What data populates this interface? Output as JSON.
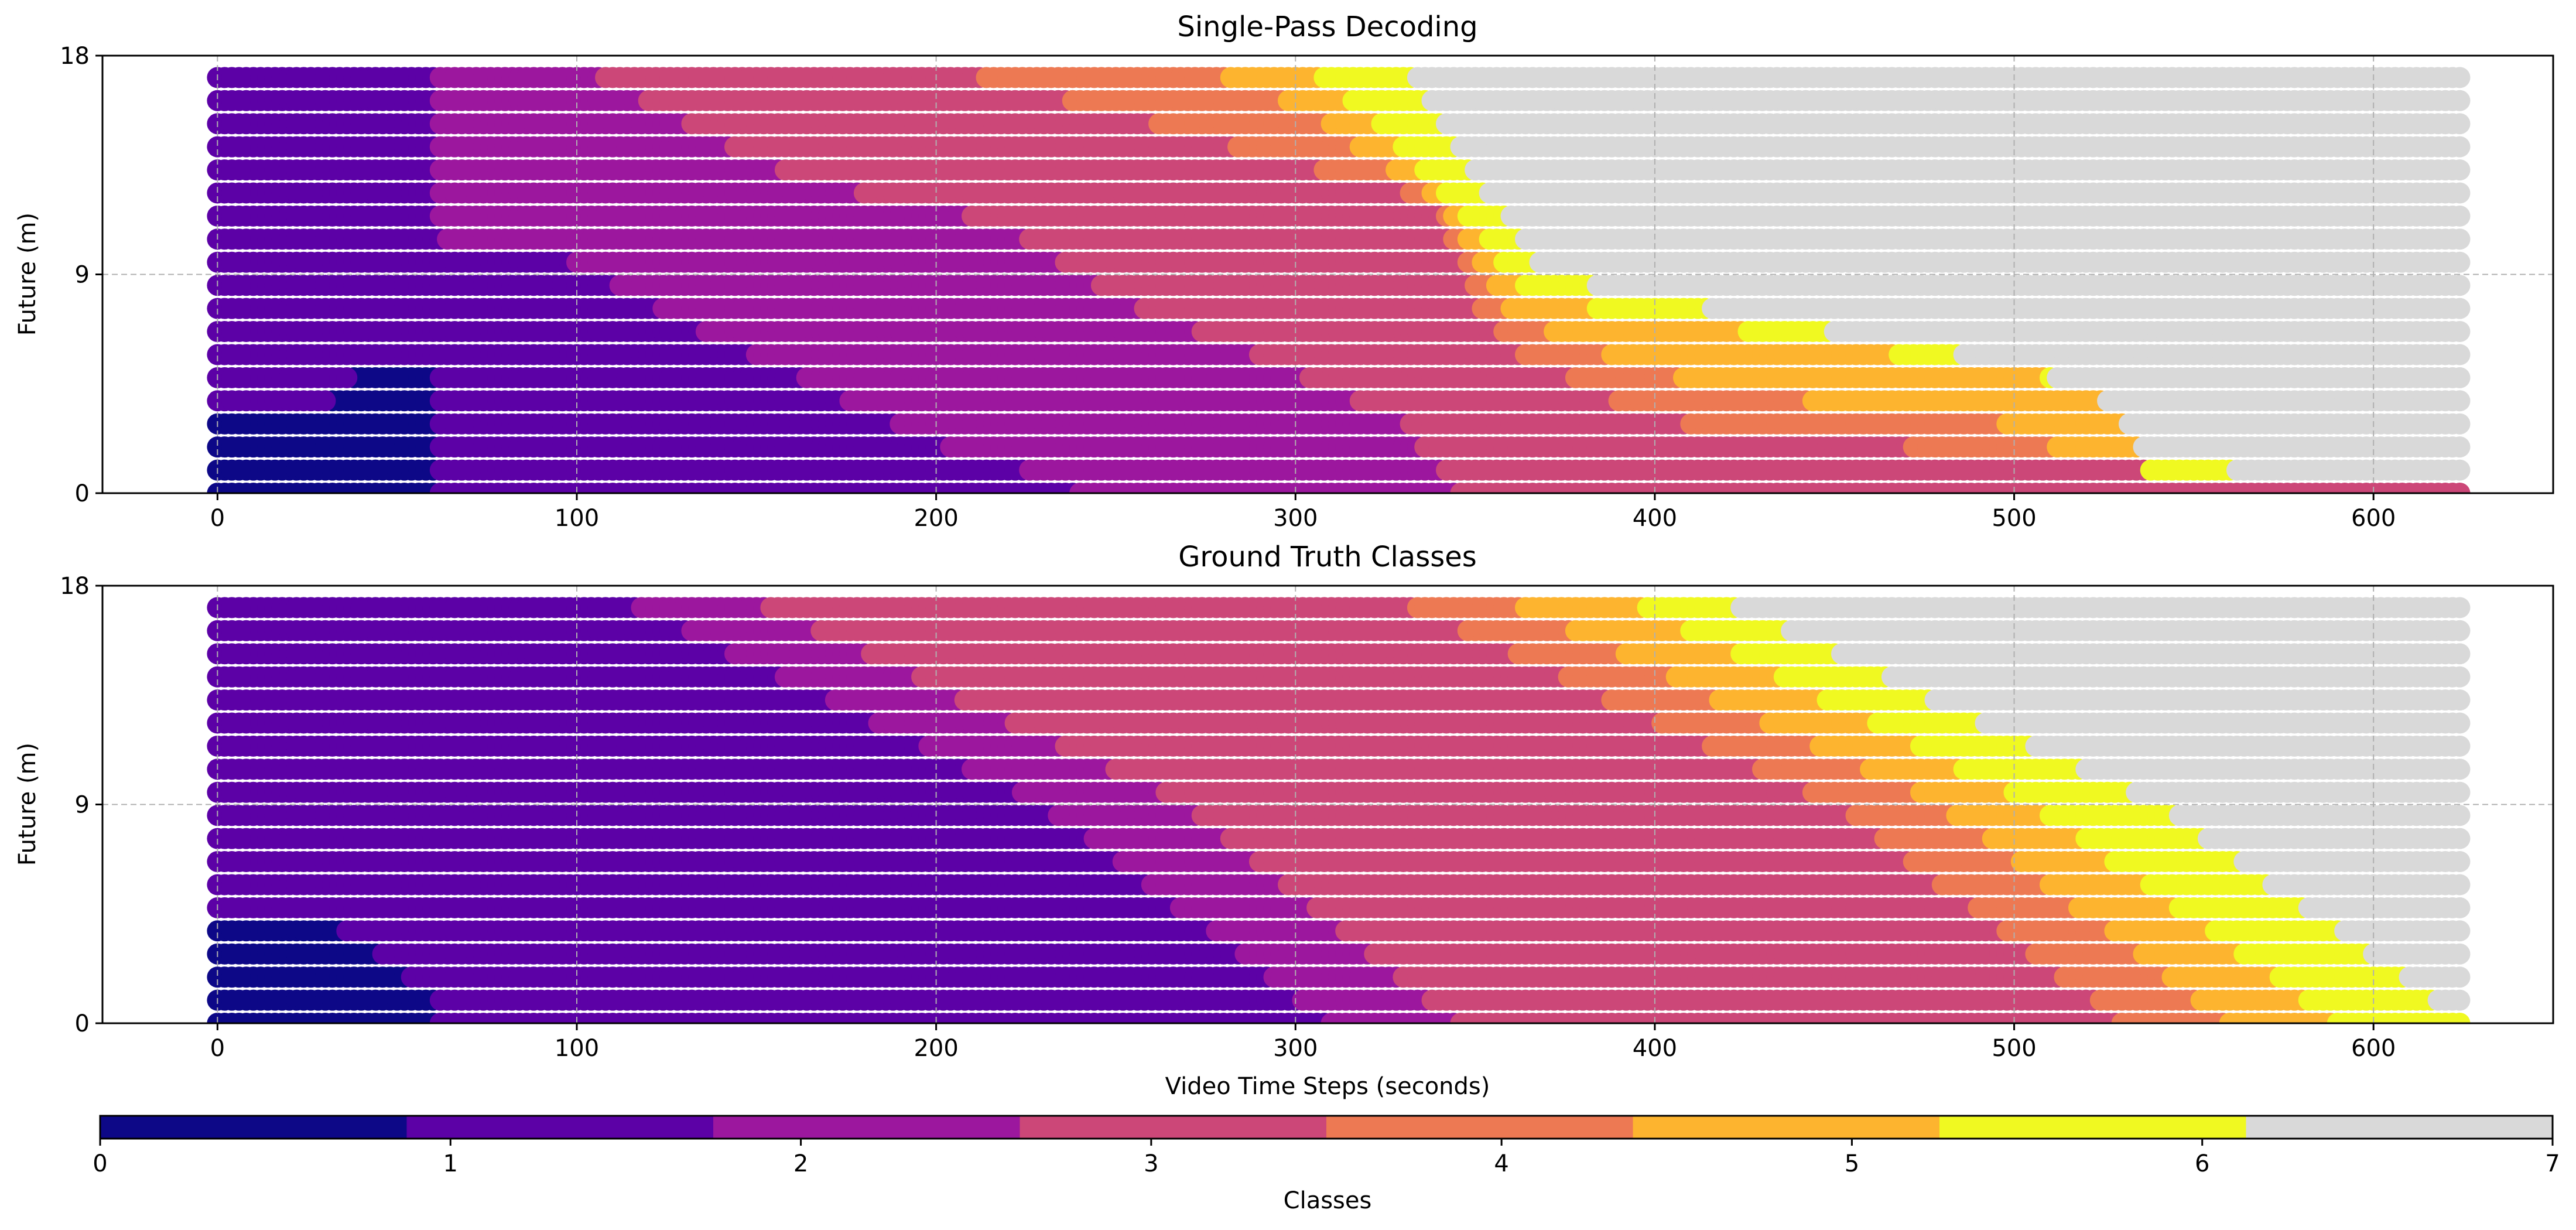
{
  "chart_data": [
    {
      "type": "scatter",
      "title": "Single-Pass Decoding",
      "xlabel": "",
      "ylabel": "Future (m)",
      "xlim": [
        -32,
        650
      ],
      "ylim": [
        0,
        18
      ],
      "xticks": [
        0,
        100,
        200,
        300,
        400,
        500,
        600
      ],
      "yticks": [
        0,
        9,
        18
      ],
      "grid": true,
      "marker": "circle",
      "point_grid": {
        "x_start": 0,
        "x_end": 624,
        "x_step": 2,
        "y_start": 0,
        "y_end": 17.5,
        "y_step": 0.95
      },
      "class_boundaries": [
        {
          "class": 0,
          "points": [
            [
              0,
              3.5
            ],
            [
              30,
              3.5
            ],
            [
              40,
              5.3
            ],
            [
              60,
              5.3
            ],
            [
              62,
              0
            ]
          ]
        },
        {
          "class": 1,
          "points": [
            [
              0,
              18
            ],
            [
              60,
              18
            ],
            [
              62,
              10.5
            ],
            [
              100,
              9.5
            ],
            [
              130,
              7
            ],
            [
              160,
              5
            ],
            [
              200,
              2
            ],
            [
              235,
              0.5
            ],
            [
              240,
              0
            ]
          ]
        },
        {
          "class": 2,
          "points": [
            [
              0,
              18
            ],
            [
              95,
              18
            ],
            [
              120,
              16
            ],
            [
              160,
              13
            ],
            [
              220,
              11
            ],
            [
              250,
              8
            ],
            [
              300,
              5
            ],
            [
              330,
              3
            ],
            [
              345,
              0
            ]
          ]
        },
        {
          "class": 3,
          "points": [
            [
              0,
              18
            ],
            [
              190,
              18
            ],
            [
              240,
              16
            ],
            [
              290,
              14
            ],
            [
              340,
              12
            ],
            [
              350,
              8
            ],
            [
              360,
              6
            ],
            [
              400,
              3
            ],
            [
              530,
              1
            ],
            [
              620,
              0.3
            ]
          ]
        },
        {
          "class": 4,
          "points": [
            [
              0,
              18
            ],
            [
              265,
              18
            ],
            [
              300,
              16
            ],
            [
              340,
              12
            ],
            [
              360,
              7.5
            ],
            [
              380,
              6
            ],
            [
              420,
              4.2
            ],
            [
              500,
              2.8
            ],
            [
              530,
              0.3
            ]
          ]
        },
        {
          "class": 5,
          "points": [
            [
              0,
              18
            ],
            [
              300,
              18
            ],
            [
              325,
              15
            ],
            [
              350,
              11
            ],
            [
              365,
              8
            ],
            [
              520,
              4.5
            ],
            [
              530,
              3.2
            ],
            [
              540,
              0.3
            ]
          ]
        },
        {
          "class": 6,
          "points": [
            [
              0,
              18
            ],
            [
              330,
              18
            ],
            [
              350,
              13
            ],
            [
              370,
              9
            ],
            [
              400,
              8
            ],
            [
              510,
              5
            ],
            [
              530,
              2
            ],
            [
              560,
              1
            ],
            [
              580,
              0.5
            ],
            [
              624,
              0.2
            ]
          ]
        }
      ]
    },
    {
      "type": "scatter",
      "title": "Ground Truth Classes",
      "xlabel": "Video Time Steps (seconds)",
      "ylabel": "Future (m)",
      "xlim": [
        -32,
        650
      ],
      "ylim": [
        0,
        18
      ],
      "xticks": [
        0,
        100,
        200,
        300,
        400,
        500,
        600
      ],
      "yticks": [
        0,
        9,
        18
      ],
      "grid": true,
      "marker": "circle",
      "point_grid": {
        "x_start": 0,
        "x_end": 624,
        "x_step": 2,
        "y_start": 0,
        "y_end": 17.5,
        "y_step": 0.95
      },
      "class_boundaries": [
        {
          "class": 0,
          "points": [
            [
              0,
              4.5
            ],
            [
              30,
              4.5
            ],
            [
              60,
              1
            ],
            [
              62,
              0
            ]
          ]
        },
        {
          "class": 1,
          "points": [
            [
              0,
              18
            ],
            [
              105,
              18
            ],
            [
              230,
              9
            ],
            [
              310,
              0
            ]
          ]
        },
        {
          "class": 2,
          "points": [
            [
              0,
              18
            ],
            [
              140,
              18
            ],
            [
              270,
              9
            ],
            [
              345,
              0
            ]
          ]
        },
        {
          "class": 3,
          "points": [
            [
              0,
              18
            ],
            [
              320,
              18
            ],
            [
              450,
              9
            ],
            [
              522,
              1
            ],
            [
              530,
              0
            ]
          ]
        },
        {
          "class": 4,
          "points": [
            [
              0,
              18
            ],
            [
              350,
              18
            ],
            [
              480,
              9
            ],
            [
              560,
              0
            ]
          ]
        },
        {
          "class": 5,
          "points": [
            [
              0,
              18
            ],
            [
              385,
              18
            ],
            [
              505,
              9
            ],
            [
              590,
              0
            ]
          ]
        },
        {
          "class": 6,
          "points": [
            [
              0,
              18
            ],
            [
              410,
              18
            ],
            [
              540,
              9
            ],
            [
              624,
              0.3
            ]
          ]
        }
      ]
    }
  ],
  "colorbar": {
    "label": "Classes",
    "ticks": [
      0,
      1,
      2,
      3,
      4,
      5,
      6,
      7
    ],
    "classes": [
      {
        "class": 0,
        "color": "#0d0887"
      },
      {
        "class": 1,
        "color": "#5c01a6"
      },
      {
        "class": 2,
        "color": "#9c179e"
      },
      {
        "class": 3,
        "color": "#cc4778"
      },
      {
        "class": 4,
        "color": "#ed7953"
      },
      {
        "class": 5,
        "color": "#fdb42f"
      },
      {
        "class": 6,
        "color": "#f0f921"
      },
      {
        "class": 7,
        "color": "#d9d9d9"
      }
    ]
  }
}
